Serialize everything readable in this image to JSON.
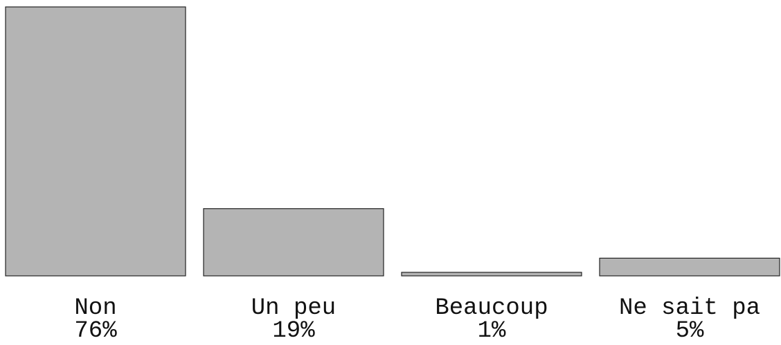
{
  "chart_data": {
    "type": "bar",
    "categories": [
      "Non",
      "Un peu",
      "Beaucoup",
      "Ne sait pa"
    ],
    "values": [
      76,
      19,
      1,
      5
    ],
    "value_labels": [
      "76%",
      "19%",
      "1%",
      "5%"
    ],
    "color": "#b4b4b4"
  }
}
